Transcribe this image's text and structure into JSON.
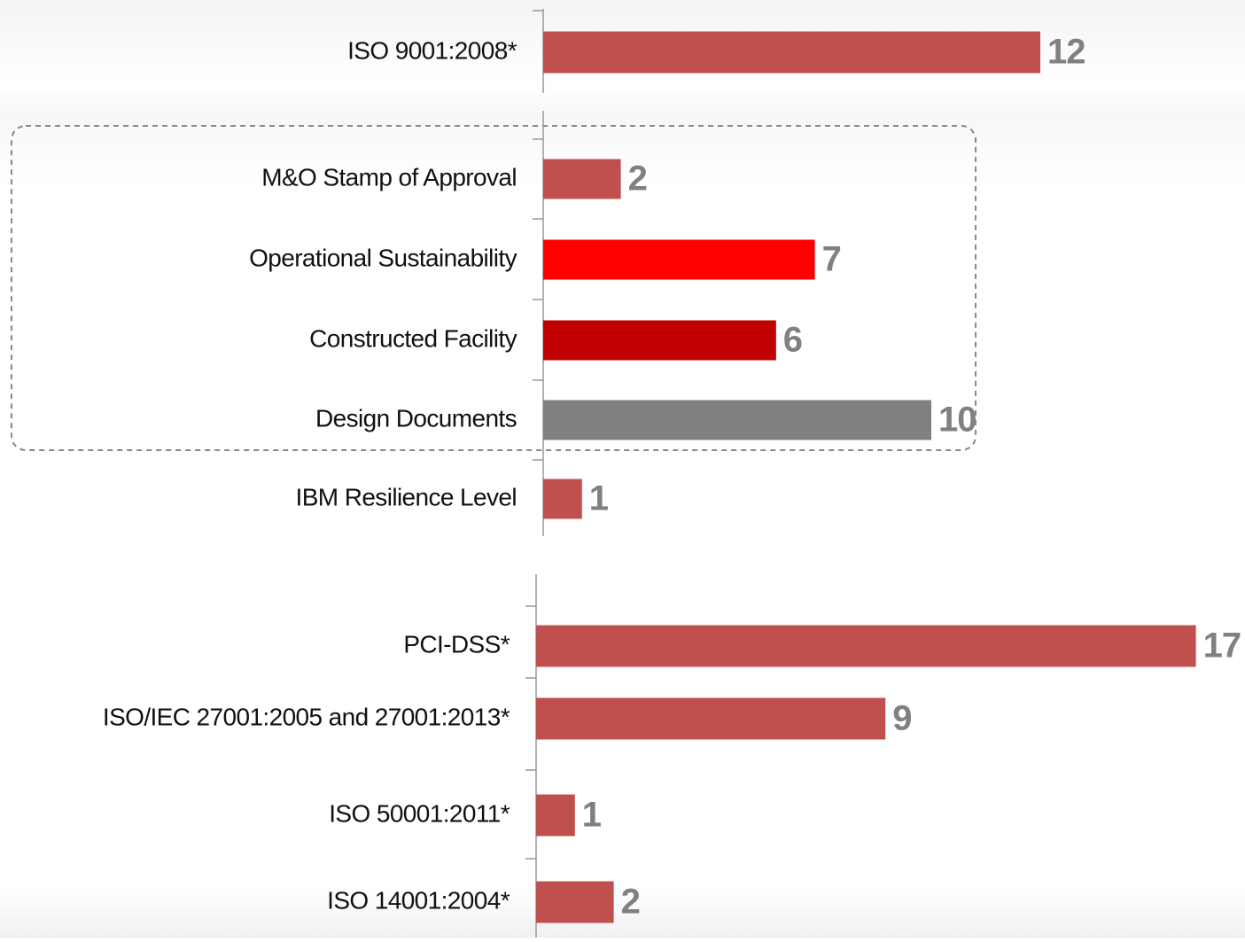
{
  "chart_data": [
    {
      "type": "bar",
      "categories": [
        "ISO 9001:2008*"
      ],
      "values": [
        12
      ],
      "colors": [
        "#c0504d"
      ]
    },
    {
      "type": "bar",
      "categories": [
        "M&O Stamp of Approval",
        "Operational Sustainability",
        "Constructed Facility",
        "Design Documents",
        "IBM Resilience Level"
      ],
      "values": [
        2,
        7,
        6,
        10,
        1
      ],
      "colors": [
        "#c0504d",
        "#ff0000",
        "#c00000",
        "#808080",
        "#c0504d"
      ]
    },
    {
      "type": "bar",
      "categories": [
        "PCI-DSS*",
        "ISO/IEC 27001:2005 and 27001:2013*",
        "ISO 50001:2011*",
        "ISO 14001:2004*"
      ],
      "values": [
        17,
        9,
        1,
        2
      ],
      "colors": [
        "#c0504d",
        "#c0504d",
        "#c0504d",
        "#c0504d"
      ]
    }
  ]
}
